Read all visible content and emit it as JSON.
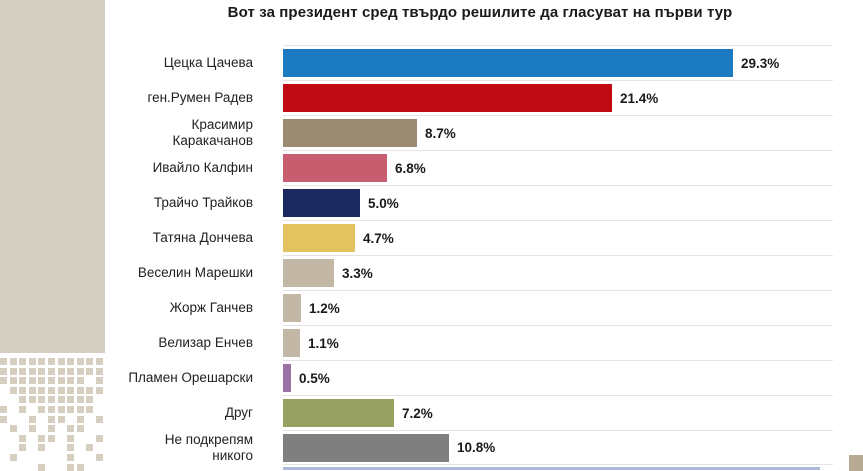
{
  "title": "Вот за президент сред твърдо решилите да гласуват на първи тур",
  "chart_data": {
    "type": "bar",
    "orientation": "horizontal",
    "title": "Вот за президент сред твърдо решилите да гласуват на първи тур",
    "categories": [
      "Цецка Цачева",
      "ген.Румен Радев",
      "Красимир Каракачанов",
      "Ивайло Калфин",
      "Трайчо Трайков",
      "Татяна Дончева",
      "Веселин Марешки",
      "Жорж Ганчев",
      "Велизар Енчев",
      "Пламен Орешарски",
      "Друг",
      "Не подкрепям никого"
    ],
    "values": [
      29.3,
      21.4,
      8.7,
      6.8,
      5.0,
      4.7,
      3.3,
      1.2,
      1.1,
      0.5,
      7.2,
      10.8
    ],
    "value_labels": [
      "29.3%",
      "21.4%",
      "8.7%",
      "6.8%",
      "5.0%",
      "4.7%",
      "3.3%",
      "1.2%",
      "1.1%",
      "0.5%",
      "7.2%",
      "10.8%"
    ],
    "bar_colors": [
      "#1b7ac1",
      "#c00b15",
      "#9a8c70",
      "#c65e70",
      "#1b2a5e",
      "#e3c260",
      "#c2b8a5",
      "#c2b8a5",
      "#c2b8a5",
      "#9c72a5",
      "#97a161",
      "#7f7f7f"
    ],
    "xlabel": "",
    "ylabel": "",
    "xlim": [
      0,
      35
    ],
    "grid": "horizontal-row-separators",
    "gridline_color": "#e4e4e4",
    "legend": "none",
    "value_label_position": "end-of-bar"
  },
  "decor": {
    "sidebar_block_color": "#d4cfc3",
    "sidebar_dot_color": "#d6cfc0",
    "bottom_accent_line_color": "#aeb8d8",
    "corner_square_color": "#b7ab93"
  }
}
